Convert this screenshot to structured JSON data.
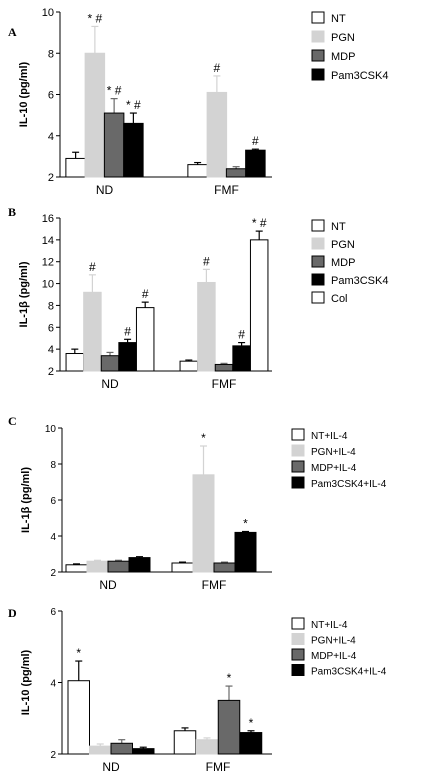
{
  "chart_data": [
    {
      "type": "bar",
      "panel_label": "A",
      "ylabel": "IL-10 (pg/ml)",
      "ylim": [
        2,
        10
      ],
      "yticks": [
        2,
        4,
        6,
        8,
        10
      ],
      "categories": [
        "ND",
        "FMF"
      ],
      "error_bars": true,
      "legend_position": "top-right",
      "series": [
        {
          "name": "NT",
          "color": "#ffffff",
          "values": [
            2.9,
            2.6
          ],
          "errors": [
            0.3,
            0.1
          ],
          "annotations": [
            "",
            ""
          ]
        },
        {
          "name": "PGN",
          "color": "#d3d3d3",
          "values": [
            8.0,
            6.1
          ],
          "errors": [
            1.3,
            0.8
          ],
          "annotations": [
            "* #",
            "#"
          ]
        },
        {
          "name": "MDP",
          "color": "#696969",
          "values": [
            5.1,
            2.4
          ],
          "errors": [
            0.7,
            0.1
          ],
          "annotations": [
            "* #",
            ""
          ]
        },
        {
          "name": "Pam3CSK4",
          "color": "#000000",
          "values": [
            4.6,
            3.3
          ],
          "errors": [
            0.5,
            0.05
          ],
          "annotations": [
            "* #",
            "#"
          ]
        }
      ]
    },
    {
      "type": "bar",
      "panel_label": "B",
      "ylabel": "IL-1β (pg/ml)",
      "ylim": [
        2,
        16
      ],
      "yticks": [
        2,
        4,
        6,
        8,
        10,
        12,
        14,
        16
      ],
      "categories": [
        "ND",
        "FMF"
      ],
      "error_bars": true,
      "legend_position": "top-right",
      "series": [
        {
          "name": "NT",
          "color": "#ffffff",
          "values": [
            3.6,
            2.9
          ],
          "errors": [
            0.4,
            0.1
          ],
          "annotations": [
            "",
            ""
          ]
        },
        {
          "name": "PGN",
          "color": "#d3d3d3",
          "values": [
            9.2,
            10.1
          ],
          "errors": [
            1.6,
            1.2
          ],
          "annotations": [
            "#",
            "#"
          ]
        },
        {
          "name": "MDP",
          "color": "#696969",
          "values": [
            3.4,
            2.6
          ],
          "errors": [
            0.3,
            0.1
          ],
          "annotations": [
            "",
            ""
          ]
        },
        {
          "name": "Pam3CSK4",
          "color": "#000000",
          "values": [
            4.6,
            4.3
          ],
          "errors": [
            0.3,
            0.3
          ],
          "annotations": [
            "#",
            "#"
          ]
        },
        {
          "name": "Col",
          "color": "#ffffff",
          "values": [
            7.8,
            14.0
          ],
          "errors": [
            0.5,
            0.8
          ],
          "annotations": [
            "#",
            "* #"
          ]
        }
      ]
    },
    {
      "type": "bar",
      "panel_label": "C",
      "ylabel": "IL-1β (pg/ml)",
      "ylim": [
        2,
        10
      ],
      "yticks": [
        2,
        4,
        6,
        8,
        10
      ],
      "categories": [
        "ND",
        "FMF"
      ],
      "error_bars": true,
      "legend_position": "top-right",
      "series": [
        {
          "name": "NT+IL-4",
          "color": "#ffffff",
          "values": [
            2.4,
            2.5
          ],
          "errors": [
            0.05,
            0.05
          ],
          "annotations": [
            "",
            ""
          ]
        },
        {
          "name": "PGN+IL-4",
          "color": "#d3d3d3",
          "values": [
            2.6,
            7.4
          ],
          "errors": [
            0.05,
            1.6
          ],
          "annotations": [
            "",
            "*"
          ]
        },
        {
          "name": "MDP+IL-4",
          "color": "#696969",
          "values": [
            2.6,
            2.5
          ],
          "errors": [
            0.05,
            0.05
          ],
          "annotations": [
            "",
            ""
          ]
        },
        {
          "name": "Pam3CSK4+IL-4",
          "color": "#000000",
          "values": [
            2.8,
            4.2
          ],
          "errors": [
            0.05,
            0.05
          ],
          "annotations": [
            "",
            "*"
          ]
        }
      ]
    },
    {
      "type": "bar",
      "panel_label": "D",
      "ylabel": "IL-10 (pg/ml)",
      "ylim": [
        2,
        6
      ],
      "yticks": [
        2,
        4,
        6
      ],
      "categories": [
        "ND",
        "FMF"
      ],
      "error_bars": true,
      "legend_position": "top-right",
      "series": [
        {
          "name": "NT+IL-4",
          "color": "#ffffff",
          "values": [
            4.05,
            2.65
          ],
          "errors": [
            0.55,
            0.08
          ],
          "annotations": [
            "*",
            ""
          ]
        },
        {
          "name": "PGN+IL-4",
          "color": "#d3d3d3",
          "values": [
            2.22,
            2.4
          ],
          "errors": [
            0.06,
            0.05
          ],
          "annotations": [
            "",
            ""
          ]
        },
        {
          "name": "MDP+IL-4",
          "color": "#696969",
          "values": [
            2.3,
            3.5
          ],
          "errors": [
            0.1,
            0.4
          ],
          "annotations": [
            "",
            "*"
          ]
        },
        {
          "name": "Pam3CSK4+IL-4",
          "color": "#000000",
          "values": [
            2.15,
            2.6
          ],
          "errors": [
            0.04,
            0.05
          ],
          "annotations": [
            "",
            "*"
          ]
        }
      ]
    }
  ]
}
